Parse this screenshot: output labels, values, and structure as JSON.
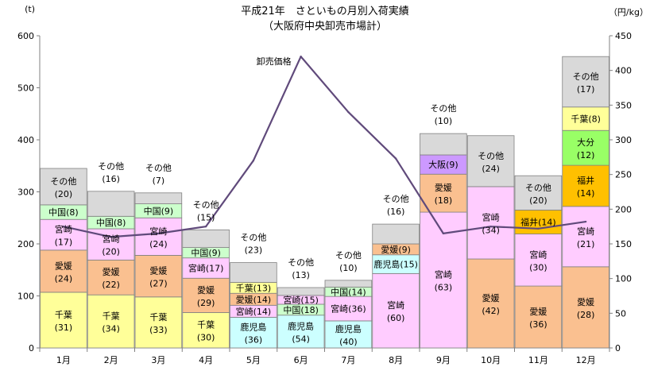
{
  "chart_data": {
    "type": "bar",
    "title": "平成21年　さといもの月別入荷実績",
    "subtitle": "（大阪府中央卸売市場計）",
    "y_left_unit": "(t)",
    "y_right_unit": "（円/kg）",
    "y_left_range": [
      0,
      600
    ],
    "y_left_ticks": [
      "0",
      "100",
      "200",
      "300",
      "400",
      "500",
      "600"
    ],
    "y_right_range": [
      0,
      450
    ],
    "y_right_ticks": [
      "0",
      "50",
      "100",
      "150",
      "200",
      "250",
      "300",
      "350",
      "400",
      "450"
    ],
    "categories": [
      "1月",
      "2月",
      "3月",
      "4月",
      "5月",
      "6月",
      "7月",
      "8月",
      "9月",
      "10月",
      "11月",
      "12月"
    ],
    "colors": {
      "千葉": "#ffff99",
      "愛媛": "#fac090",
      "宮崎": "#ffccff",
      "中国": "#ccffcc",
      "鹿児島": "#ccffff",
      "大阪": "#cc99ff",
      "福井": "#ffc000",
      "大分": "#99ff66",
      "その他": "#d9d9d9",
      "line": "#604a7b",
      "axis": "#808080"
    },
    "stacks": [
      [
        {
          "name": "千葉",
          "tons": 107,
          "label": "千葉",
          "share": "(31)"
        },
        {
          "name": "愛媛",
          "tons": 81,
          "label": "愛媛",
          "share": "(24)"
        },
        {
          "name": "宮崎",
          "tons": 59,
          "label": "宮崎",
          "share": "(17)"
        },
        {
          "name": "中国",
          "tons": 28,
          "label": "中国",
          "share": "(8)"
        },
        {
          "name": "その他",
          "tons": 70,
          "label": "その他",
          "share": "(20)"
        }
      ],
      [
        {
          "name": "千葉",
          "tons": 102,
          "label": "千葉",
          "share": "(34)"
        },
        {
          "name": "愛媛",
          "tons": 67,
          "label": "愛媛",
          "share": "(22)"
        },
        {
          "name": "宮崎",
          "tons": 60,
          "label": "宮崎",
          "share": "(20)"
        },
        {
          "name": "中国",
          "tons": 24,
          "label": "中国",
          "share": "(8)"
        },
        {
          "name": "その他",
          "tons": 48,
          "label": "その他",
          "share": "(16)",
          "outside": true
        }
      ],
      [
        {
          "name": "千葉",
          "tons": 98,
          "label": "千葉",
          "share": "(33)"
        },
        {
          "name": "愛媛",
          "tons": 80,
          "label": "愛媛",
          "share": "(27)"
        },
        {
          "name": "宮崎",
          "tons": 72,
          "label": "宮崎",
          "share": "(24)"
        },
        {
          "name": "中国",
          "tons": 27,
          "label": "中国",
          "share": "(9)"
        },
        {
          "name": "その他",
          "tons": 21,
          "label": "その他",
          "share": "(7)",
          "outside": true
        }
      ],
      [
        {
          "name": "千葉",
          "tons": 68,
          "label": "千葉",
          "share": "(30)"
        },
        {
          "name": "愛媛",
          "tons": 66,
          "label": "愛媛",
          "share": "(29)"
        },
        {
          "name": "宮崎",
          "tons": 39,
          "label": "宮崎",
          "share": "(17)"
        },
        {
          "name": "中国",
          "tons": 20,
          "label": "中国",
          "share": "(9)"
        },
        {
          "name": "その他",
          "tons": 34,
          "label": "その他",
          "share": "(15)",
          "outside": true
        }
      ],
      [
        {
          "name": "鹿児島",
          "tons": 59,
          "label": "鹿児島",
          "share": "(36)"
        },
        {
          "name": "宮崎",
          "tons": 23,
          "label": "宮崎",
          "share": "(14)"
        },
        {
          "name": "愛媛",
          "tons": 23,
          "label": "愛媛",
          "share": "(14)"
        },
        {
          "name": "千葉",
          "tons": 21,
          "label": "千葉",
          "share": "(13)"
        },
        {
          "name": "その他",
          "tons": 38,
          "label": "その他",
          "share": "(23)",
          "outside": true
        }
      ],
      [
        {
          "name": "鹿児島",
          "tons": 63,
          "label": "鹿児島",
          "share": "(54)"
        },
        {
          "name": "中国",
          "tons": 21,
          "label": "中国",
          "share": "(18)"
        },
        {
          "name": "宮崎",
          "tons": 17,
          "label": "宮崎",
          "share": "(15)"
        },
        {
          "name": "その他",
          "tons": 15,
          "label": "その他",
          "share": "(13)",
          "outside": true
        }
      ],
      [
        {
          "name": "鹿児島",
          "tons": 52,
          "label": "鹿児島",
          "share": "(40)"
        },
        {
          "name": "宮崎",
          "tons": 47,
          "label": "宮崎",
          "share": "(36)"
        },
        {
          "name": "中国",
          "tons": 18,
          "label": "中国",
          "share": "(14)"
        },
        {
          "name": "その他",
          "tons": 13,
          "label": "その他",
          "share": "(10)",
          "outside": true
        }
      ],
      [
        {
          "name": "宮崎",
          "tons": 143,
          "label": "宮崎",
          "share": "(60)"
        },
        {
          "name": "鹿児島",
          "tons": 36,
          "label": "鹿児島",
          "share": "(15)"
        },
        {
          "name": "愛媛",
          "tons": 21,
          "label": "愛媛",
          "share": "(9)"
        },
        {
          "name": "その他",
          "tons": 38,
          "label": "その他",
          "share": "(16)",
          "outside": true
        }
      ],
      [
        {
          "name": "宮崎",
          "tons": 261,
          "label": "宮崎",
          "share": "(63)"
        },
        {
          "name": "愛媛",
          "tons": 73,
          "label": "愛媛",
          "share": "(18)"
        },
        {
          "name": "大阪",
          "tons": 37,
          "label": "大阪",
          "share": "(9)",
          "inline": true
        },
        {
          "name": "その他",
          "tons": 41,
          "label": "その他",
          "share": "(10)",
          "outside": true
        }
      ],
      [
        {
          "name": "愛媛",
          "tons": 171,
          "label": "愛媛",
          "share": "(42)"
        },
        {
          "name": "宮崎",
          "tons": 139,
          "label": "宮崎",
          "share": "(34)"
        },
        {
          "name": "その他",
          "tons": 98,
          "label": "その他",
          "share": "(24)"
        }
      ],
      [
        {
          "name": "愛媛",
          "tons": 119,
          "label": "愛媛",
          "share": "(36)"
        },
        {
          "name": "宮崎",
          "tons": 100,
          "label": "宮崎",
          "share": "(30)"
        },
        {
          "name": "福井",
          "tons": 46,
          "label": "福井",
          "share": "(14)",
          "inline": true
        },
        {
          "name": "その他",
          "tons": 66,
          "label": "その他",
          "share": "(20)"
        }
      ],
      [
        {
          "name": "愛媛",
          "tons": 156,
          "label": "愛媛",
          "share": "(28)"
        },
        {
          "name": "宮崎",
          "tons": 116,
          "label": "宮崎",
          "share": "(21)"
        },
        {
          "name": "福井",
          "tons": 79,
          "label": "福井",
          "share": "(14)"
        },
        {
          "name": "大分",
          "tons": 67,
          "label": "大分",
          "share": "(12)"
        },
        {
          "name": "千葉",
          "tons": 45,
          "label": "千葉",
          "share": "(8)",
          "inline": true
        },
        {
          "name": "その他",
          "tons": 97,
          "label": "その他",
          "share": "(17)"
        }
      ]
    ],
    "line": {
      "name": "卸売価格",
      "axis": "right",
      "values": [
        175,
        160,
        165,
        175,
        270,
        420,
        340,
        273,
        165,
        175,
        172,
        182
      ]
    }
  }
}
